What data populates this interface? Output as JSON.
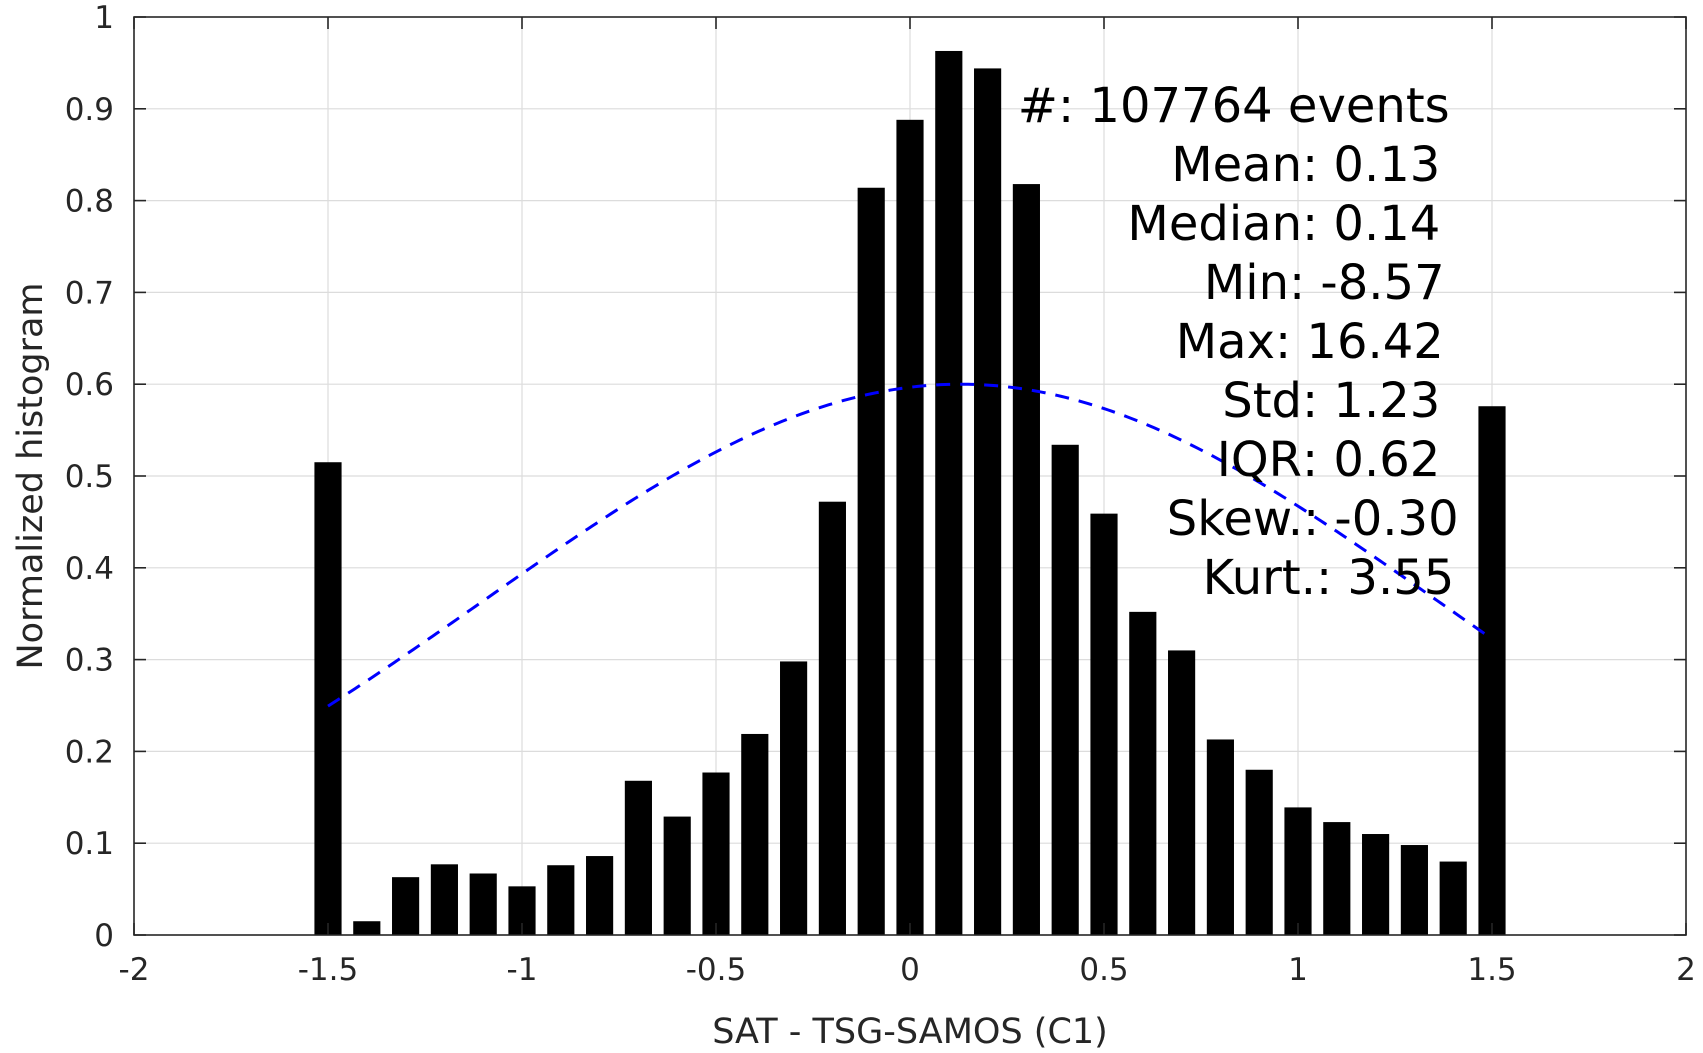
{
  "chart_data": {
    "type": "bar",
    "xlabel": "SAT - TSG-SAMOS (C1)",
    "ylabel": "Normalized histogram",
    "xlim": [
      -2,
      2
    ],
    "ylim": [
      0,
      1
    ],
    "xticks": [
      -2,
      -1.5,
      -1,
      -0.5,
      0,
      0.5,
      1,
      1.5,
      2
    ],
    "xtick_labels": [
      "-2",
      "-1.5",
      "-1",
      "-0.5",
      "0",
      "0.5",
      "1",
      "1.5",
      "2"
    ],
    "yticks": [
      0,
      0.1,
      0.2,
      0.3,
      0.4,
      0.5,
      0.6,
      0.7,
      0.8,
      0.9,
      1
    ],
    "ytick_labels": [
      "0",
      "0.1",
      "0.2",
      "0.3",
      "0.4",
      "0.5",
      "0.6",
      "0.7",
      "0.8",
      "0.9",
      "1"
    ],
    "grid": true,
    "bar_color": "#000000",
    "bar_width": 0.07,
    "bars": {
      "x": [
        -1.5,
        -1.4,
        -1.3,
        -1.2,
        -1.1,
        -1.0,
        -0.9,
        -0.8,
        -0.7,
        -0.6,
        -0.5,
        -0.4,
        -0.3,
        -0.2,
        -0.1,
        0.0,
        0.1,
        0.2,
        0.3,
        0.4,
        0.5,
        0.6,
        0.7,
        0.8,
        0.9,
        1.0,
        1.1,
        1.2,
        1.3,
        1.4,
        1.5
      ],
      "values": [
        0.515,
        0.015,
        0.063,
        0.077,
        0.067,
        0.053,
        0.076,
        0.086,
        0.168,
        0.129,
        0.177,
        0.219,
        0.298,
        0.472,
        0.814,
        0.888,
        0.963,
        0.944,
        0.818,
        0.534,
        0.459,
        0.352,
        0.31,
        0.213,
        0.18,
        0.139,
        0.123,
        0.11,
        0.098,
        0.08,
        0.576
      ]
    },
    "fit_curve": {
      "style": "dashed",
      "color": "#0000ff",
      "x_range": [
        -1.5,
        1.5
      ],
      "peak_value": 0.6,
      "mean": 0.13,
      "std": 1.23
    },
    "annotations": [
      {
        "label": "#  ",
        "value": ": 107764 events"
      },
      {
        "label": "Mean ",
        "value": ": 0.13"
      },
      {
        "label": "Median ",
        "value": ": 0.14"
      },
      {
        "label": "Min ",
        "value": ": -8.57"
      },
      {
        "label": "Max ",
        "value": ": 16.42"
      },
      {
        "label": "Std ",
        "value": ": 1.23"
      },
      {
        "label": "IQR ",
        "value": ": 0.62"
      },
      {
        "label": "Skew. ",
        "value": ": -0.30"
      },
      {
        "label": "Kurt. ",
        "value": ": 3.55"
      }
    ]
  }
}
